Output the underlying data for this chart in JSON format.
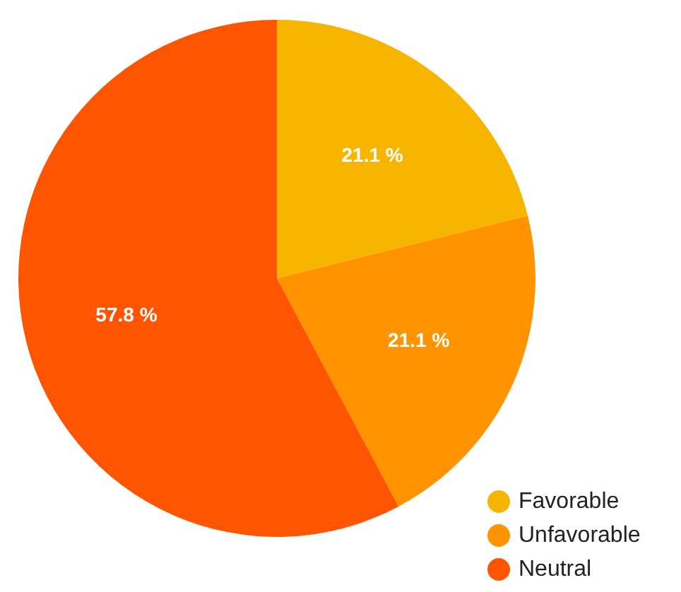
{
  "chart_data": {
    "type": "pie",
    "categories": [
      "Favorable",
      "Unfavorable",
      "Neutral"
    ],
    "values": [
      21.1,
      21.1,
      57.8
    ],
    "colors": [
      "#f7b500",
      "#ff9300",
      "#ff5500"
    ],
    "value_labels": [
      "21.1 %",
      "21.1 %",
      "57.8 %"
    ],
    "legend": "bottom right"
  }
}
